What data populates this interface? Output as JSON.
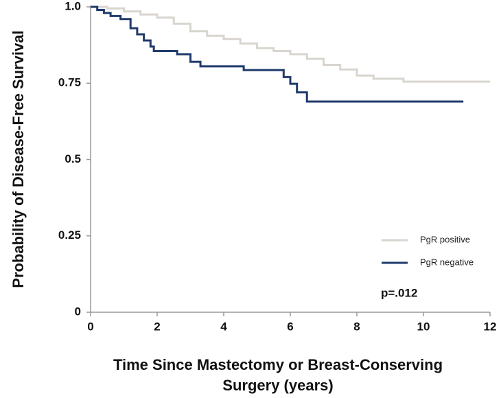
{
  "chart_data": {
    "type": "line",
    "step": true,
    "xlabel": [
      "Time Since Mastectomy or Breast-Conserving",
      "Surgery (years)"
    ],
    "ylabel": "Probability of Disease-Free Survival",
    "annotation": "p=.012",
    "xlim": [
      0,
      12
    ],
    "xticks": [
      0,
      2,
      4,
      6,
      8,
      10,
      12
    ],
    "ylim": [
      0,
      1
    ],
    "yticks": [
      {
        "value": 1,
        "label": "1.0"
      },
      0.75,
      0.5,
      0.25,
      0
    ],
    "series": [
      {
        "name": "PgR positive",
        "color": "#d8d5ce",
        "x": [
          0,
          0.5,
          1,
          1.5,
          2,
          2.5,
          3,
          3.5,
          4,
          4.5,
          5,
          5.5,
          6,
          6.5,
          7,
          7.5,
          8,
          8.5,
          9.4,
          12
        ],
        "values": [
          1,
          0.995,
          0.985,
          0.975,
          0.965,
          0.945,
          0.92,
          0.905,
          0.895,
          0.88,
          0.865,
          0.855,
          0.845,
          0.83,
          0.81,
          0.795,
          0.775,
          0.765,
          0.755,
          0.755
        ]
      },
      {
        "name": "PgR negative",
        "color": "#1f3a6b",
        "x": [
          0,
          0.2,
          0.4,
          0.6,
          0.9,
          1.2,
          1.4,
          1.6,
          1.8,
          1.9,
          2.6,
          3.0,
          3.3,
          4.6,
          5.8,
          6.0,
          6.2,
          6.5,
          11.2
        ],
        "values": [
          1,
          0.99,
          0.98,
          0.97,
          0.96,
          0.93,
          0.91,
          0.89,
          0.87,
          0.855,
          0.845,
          0.82,
          0.805,
          0.793,
          0.77,
          0.748,
          0.72,
          0.69,
          0.69
        ]
      }
    ]
  }
}
